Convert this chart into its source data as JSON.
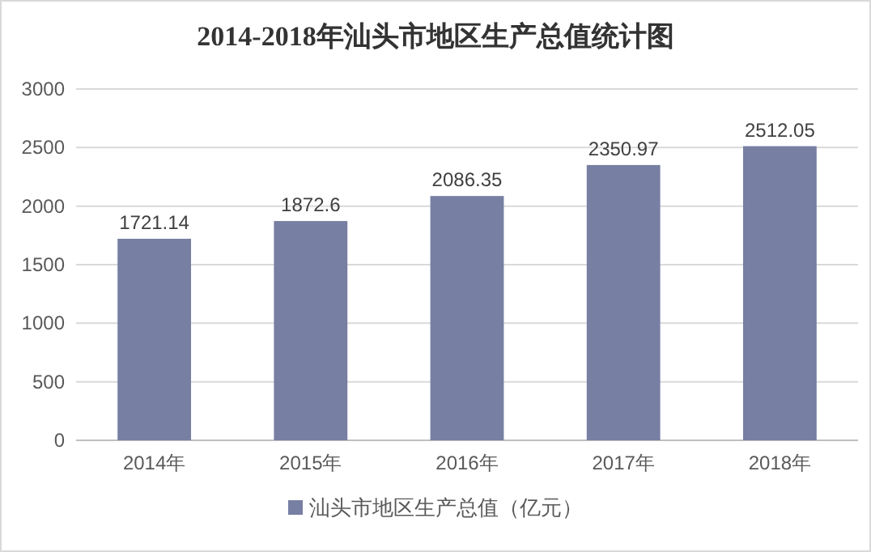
{
  "chart_data": {
    "type": "bar",
    "title": "2014-2018年汕头市地区生产总值统计图",
    "categories": [
      "2014年",
      "2015年",
      "2016年",
      "2017年",
      "2018年"
    ],
    "series": [
      {
        "name": "汕头市地区生产总值（亿元）",
        "color": "#777fa3",
        "values": [
          1721.14,
          1872.6,
          2086.35,
          2350.97,
          2512.05
        ]
      }
    ],
    "ylim": [
      0,
      3000
    ],
    "yticks": [
      0,
      500,
      1000,
      1500,
      2000,
      2500,
      3000
    ],
    "grid": "y",
    "data_labels": true,
    "legend": "bottom"
  }
}
